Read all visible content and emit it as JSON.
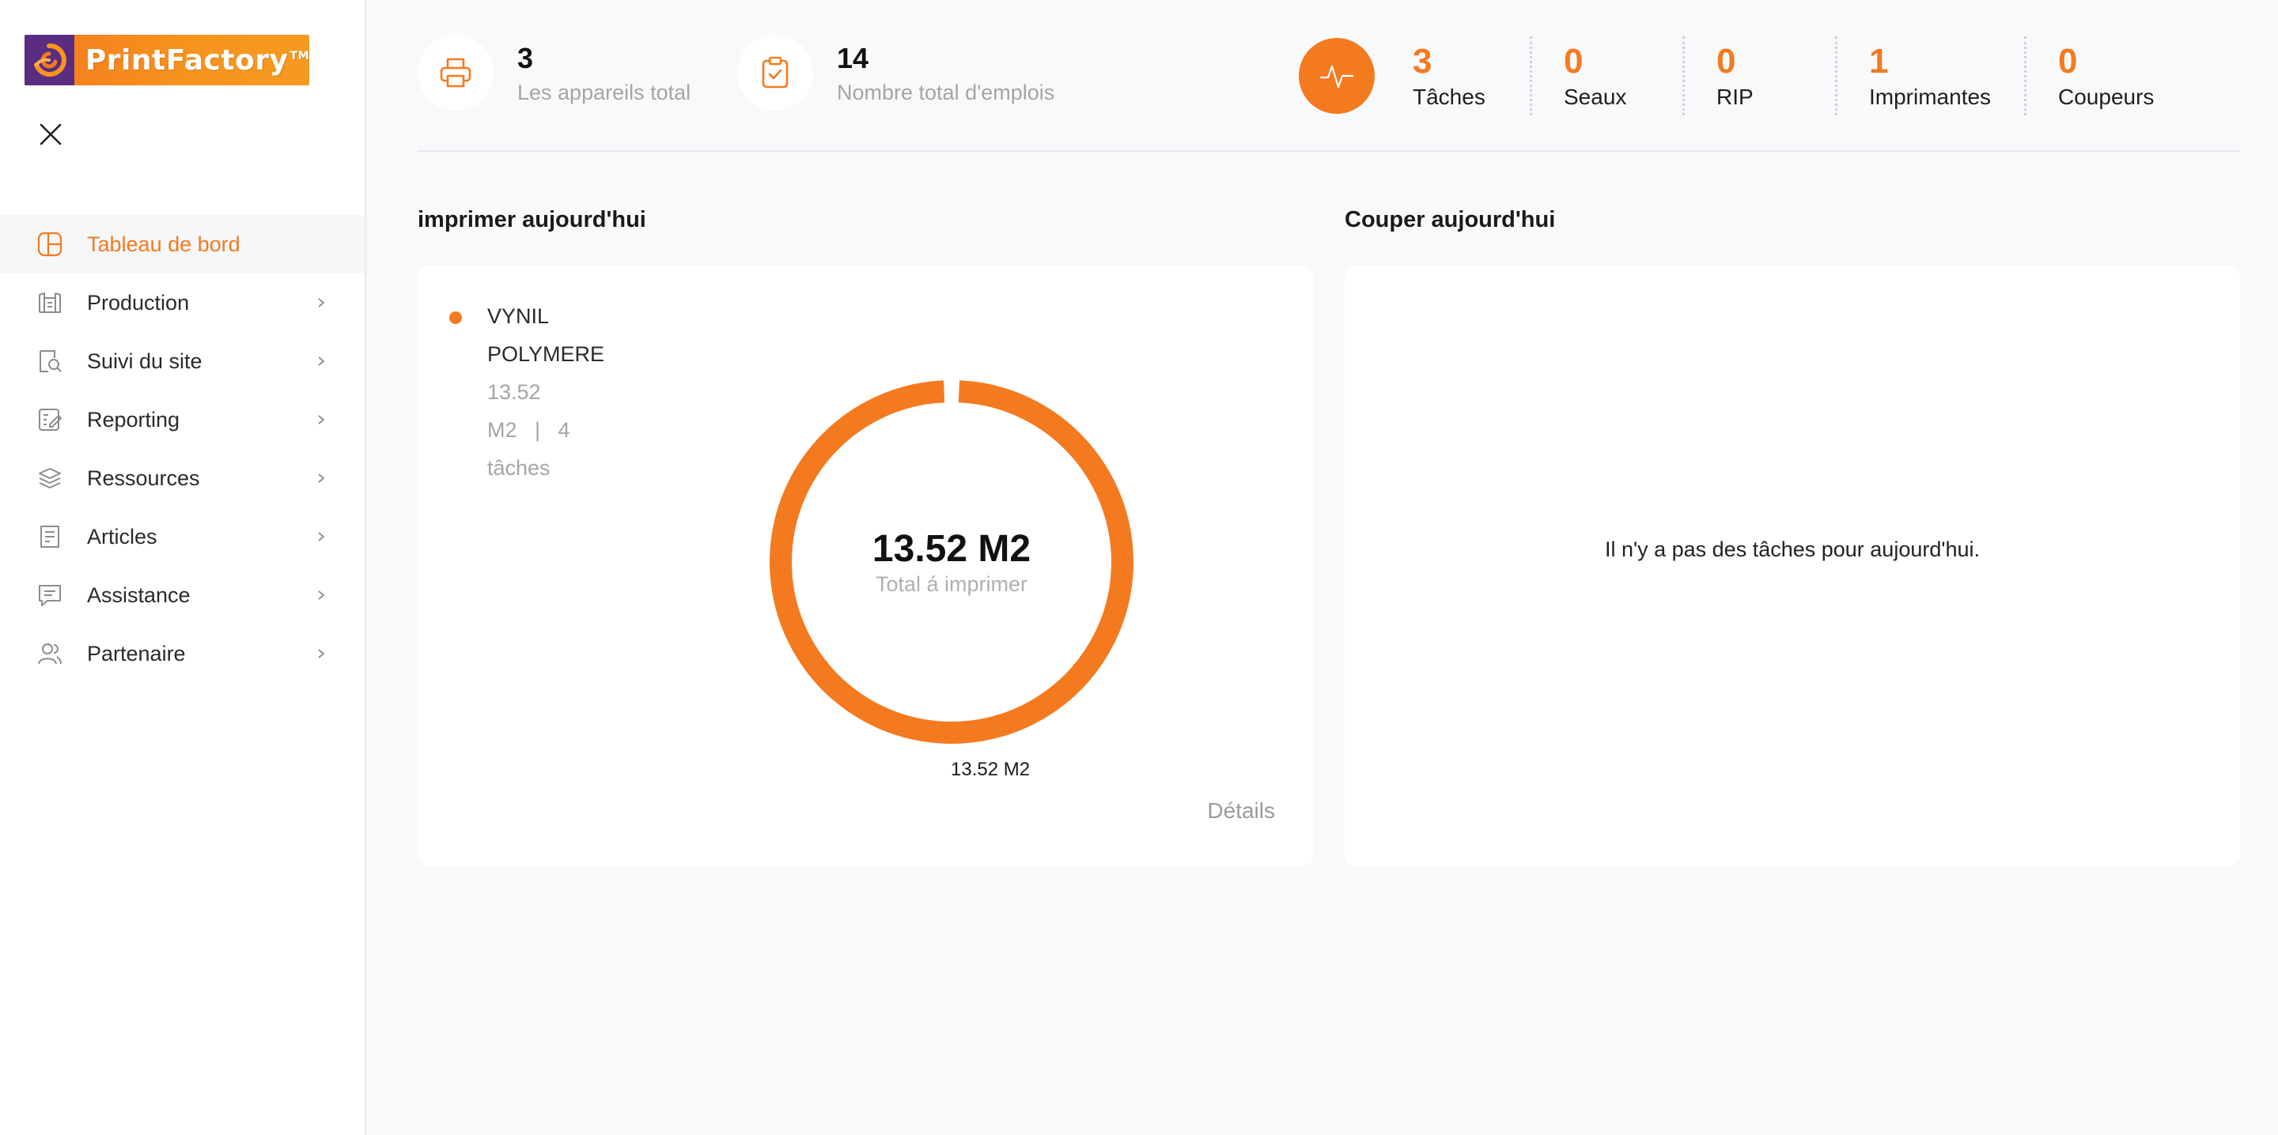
{
  "brand": {
    "name": "PrintFactory",
    "tm": "TM",
    "accent": "#f47a20"
  },
  "sidebar": {
    "items": [
      {
        "label": "Tableau de bord",
        "icon": "dashboard-icon",
        "active": true
      },
      {
        "label": "Production",
        "icon": "production-icon"
      },
      {
        "label": "Suivi du site",
        "icon": "site-search-icon"
      },
      {
        "label": "Reporting",
        "icon": "reporting-icon"
      },
      {
        "label": "Ressources",
        "icon": "layers-icon"
      },
      {
        "label": "Articles",
        "icon": "articles-icon"
      },
      {
        "label": "Assistance",
        "icon": "chat-icon"
      },
      {
        "label": "Partenaire",
        "icon": "users-icon"
      }
    ]
  },
  "stats": {
    "devices": {
      "value": "3",
      "label": "Les appareils total",
      "icon": "printer-icon"
    },
    "jobs": {
      "value": "14",
      "label": "Nombre total d'emplois",
      "icon": "clipboard-check-icon"
    }
  },
  "tasks": [
    {
      "value": "3",
      "label": "Tâches"
    },
    {
      "value": "0",
      "label": "Seaux"
    },
    {
      "value": "0",
      "label": "RIP"
    },
    {
      "value": "1",
      "label": "Imprimantes"
    },
    {
      "value": "0",
      "label": "Coupeurs"
    }
  ],
  "print_today": {
    "title": "imprimer aujourd'hui",
    "legend": {
      "name_line1": "VYNIL",
      "name_line2": "POLYMERE",
      "sub_line1": "13.52",
      "sub_line2": "M2   |   4",
      "sub_line3": "tâches"
    },
    "total": "13.52 M2",
    "caption": "Total á imprimer",
    "slice_label": "13.52 M2",
    "details": "Détails"
  },
  "cut_today": {
    "title": "Couper aujourd'hui",
    "empty": "Il n'y a pas des tâches pour aujourd'hui."
  },
  "chart_data": {
    "type": "pie",
    "categories": [
      "VYNIL POLYMERE"
    ],
    "values": [
      13.52
    ],
    "unit": "M2",
    "title": "",
    "colors": [
      "#f47a20"
    ]
  }
}
